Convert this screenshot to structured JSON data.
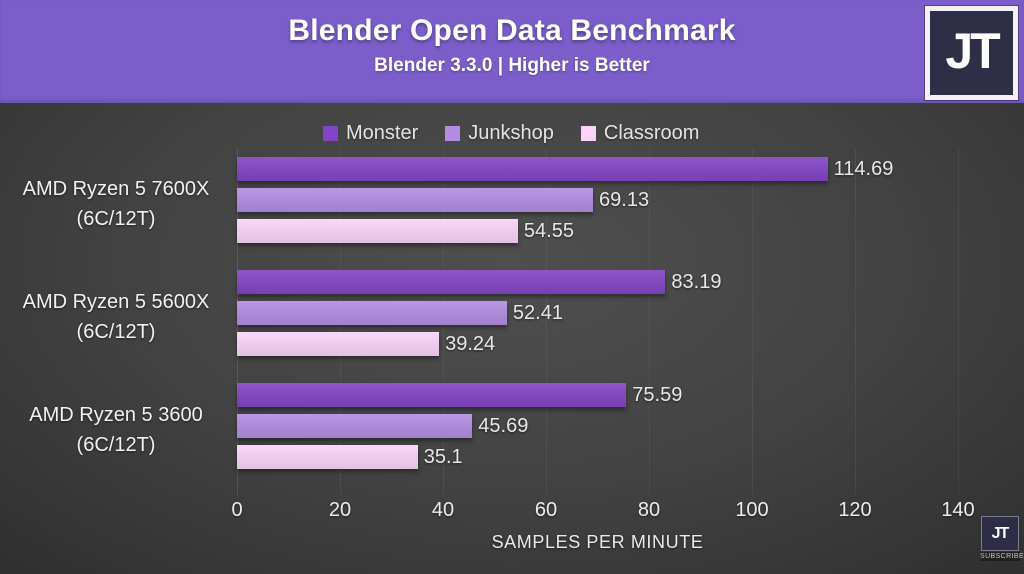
{
  "header": {
    "title": "Blender Open Data Benchmark",
    "subtitle": "Blender 3.3.0 | Higher is Better"
  },
  "logos": {
    "badge_text": "JT",
    "watermark_text": "JT",
    "watermark_caption": "SUBSCRIBE"
  },
  "colors": {
    "header_bg": "#7b5ec9",
    "background_center": "#4f4f4f",
    "background_edge": "#2b2b2b",
    "logo_bg": "#2e2e46",
    "monster": "#8145c5",
    "junkshop": "#b28de2",
    "classroom": "#fad3f9"
  },
  "chart_data": {
    "type": "bar",
    "orientation": "horizontal",
    "title": "Blender Open Data Benchmark",
    "subtitle": "Blender 3.3.0 | Higher is Better",
    "xlabel": "SAMPLES PER MINUTE",
    "xlim": [
      0,
      140
    ],
    "xticks": [
      0,
      20,
      40,
      60,
      80,
      100,
      120,
      140
    ],
    "grid": true,
    "legend_position": "top",
    "groups": [
      {
        "line1": "AMD Ryzen 5 7600X",
        "line2": "(6C/12T)"
      },
      {
        "line1": "AMD Ryzen 5 5600X",
        "line2": "(6C/12T)"
      },
      {
        "line1": "AMD Ryzen 5 3600",
        "line2": "(6C/12T)"
      }
    ],
    "series": [
      {
        "name": "Monster",
        "color": "#8145c5",
        "values": [
          114.69,
          83.19,
          75.59
        ],
        "labels": [
          "114.69",
          "83.19",
          "75.59"
        ]
      },
      {
        "name": "Junkshop",
        "color": "#b28de2",
        "values": [
          69.13,
          52.41,
          45.69
        ],
        "labels": [
          "69.13",
          "52.41",
          "45.69"
        ]
      },
      {
        "name": "Classroom",
        "color": "#fad3f9",
        "values": [
          54.55,
          39.24,
          35.1
        ],
        "labels": [
          "54.55",
          "39.24",
          "35.1"
        ]
      }
    ]
  }
}
